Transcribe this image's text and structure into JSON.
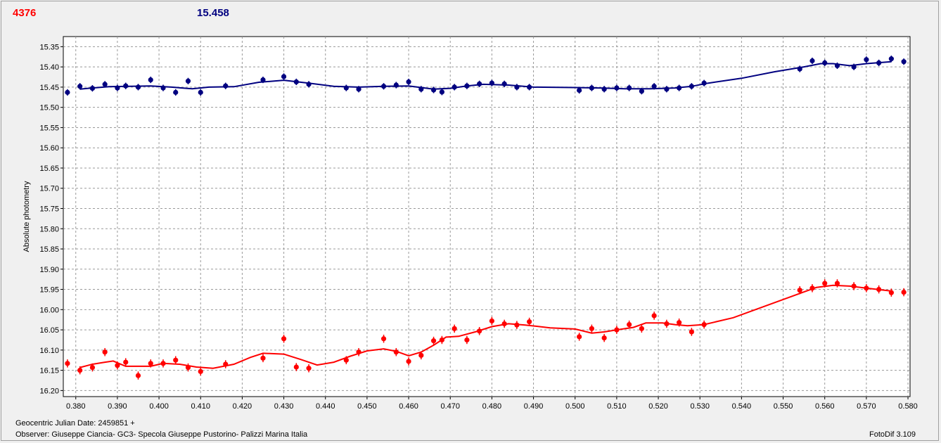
{
  "header": {
    "left_value": "4376",
    "right_value": "15.458",
    "left_color": "#ff0000",
    "right_color": "#000080"
  },
  "footer": {
    "date_line": "Geocentric Julian Date: 2459851 +",
    "observer_line": "Observer: Giuseppe Ciancia- GC3- Specola Giuseppe Pustorino- Palizzi Marina Italia",
    "software": "FotoDif 3.109"
  },
  "chart_data": {
    "type": "scatter",
    "ylabel": "Absolute photometry",
    "xlim": [
      0.377,
      0.5805
    ],
    "ylim": [
      15.325,
      16.215
    ],
    "y_inverted": true,
    "grid": true,
    "x_ticks": [
      "0.380",
      "0.390",
      "0.400",
      "0.410",
      "0.420",
      "0.430",
      "0.440",
      "0.450",
      "0.460",
      "0.470",
      "0.480",
      "0.490",
      "0.500",
      "0.510",
      "0.520",
      "0.530",
      "0.540",
      "0.550",
      "0.560",
      "0.570",
      "0.580"
    ],
    "y_ticks": [
      "15.35",
      "15.40",
      "15.45",
      "15.50",
      "15.55",
      "15.60",
      "15.65",
      "15.70",
      "15.75",
      "15.80",
      "15.85",
      "15.90",
      "15.95",
      "16.00",
      "16.05",
      "16.10",
      "16.15",
      "16.20"
    ],
    "series": [
      {
        "color": "#000080",
        "points": [
          [
            0.378,
            15.463
          ],
          [
            0.381,
            15.448
          ],
          [
            0.384,
            15.453
          ],
          [
            0.387,
            15.443
          ],
          [
            0.39,
            15.452
          ],
          [
            0.392,
            15.447
          ],
          [
            0.395,
            15.45
          ],
          [
            0.398,
            15.432
          ],
          [
            0.401,
            15.452
          ],
          [
            0.404,
            15.463
          ],
          [
            0.407,
            15.435
          ],
          [
            0.41,
            15.463
          ],
          [
            0.416,
            15.447
          ],
          [
            0.425,
            15.432
          ],
          [
            0.43,
            15.424
          ],
          [
            0.433,
            15.437
          ],
          [
            0.436,
            15.443
          ],
          [
            0.445,
            15.452
          ],
          [
            0.448,
            15.455
          ],
          [
            0.454,
            15.448
          ],
          [
            0.457,
            15.445
          ],
          [
            0.46,
            15.437
          ],
          [
            0.463,
            15.455
          ],
          [
            0.466,
            15.457
          ],
          [
            0.468,
            15.462
          ],
          [
            0.471,
            15.45
          ],
          [
            0.474,
            15.447
          ],
          [
            0.477,
            15.442
          ],
          [
            0.48,
            15.44
          ],
          [
            0.483,
            15.442
          ],
          [
            0.486,
            15.45
          ],
          [
            0.489,
            15.45
          ],
          [
            0.501,
            15.458
          ],
          [
            0.504,
            15.452
          ],
          [
            0.507,
            15.455
          ],
          [
            0.51,
            15.452
          ],
          [
            0.513,
            15.452
          ],
          [
            0.516,
            15.46
          ],
          [
            0.519,
            15.448
          ],
          [
            0.522,
            15.455
          ],
          [
            0.525,
            15.452
          ],
          [
            0.528,
            15.448
          ],
          [
            0.531,
            15.44
          ],
          [
            0.554,
            15.405
          ],
          [
            0.557,
            15.385
          ],
          [
            0.56,
            15.39
          ],
          [
            0.563,
            15.397
          ],
          [
            0.567,
            15.4
          ],
          [
            0.57,
            15.382
          ],
          [
            0.573,
            15.39
          ],
          [
            0.576,
            15.38
          ],
          [
            0.579,
            15.387
          ]
        ],
        "fit": [
          [
            0.381,
            15.455
          ],
          [
            0.384,
            15.452
          ],
          [
            0.388,
            15.449
          ],
          [
            0.393,
            15.448
          ],
          [
            0.398,
            15.447
          ],
          [
            0.403,
            15.45
          ],
          [
            0.408,
            15.454
          ],
          [
            0.412,
            15.45
          ],
          [
            0.418,
            15.449
          ],
          [
            0.424,
            15.438
          ],
          [
            0.43,
            15.433
          ],
          [
            0.436,
            15.44
          ],
          [
            0.442,
            15.448
          ],
          [
            0.448,
            15.45
          ],
          [
            0.454,
            15.448
          ],
          [
            0.46,
            15.447
          ],
          [
            0.466,
            15.455
          ],
          [
            0.47,
            15.453
          ],
          [
            0.474,
            15.447
          ],
          [
            0.478,
            15.443
          ],
          [
            0.484,
            15.445
          ],
          [
            0.49,
            15.45
          ],
          [
            0.5,
            15.451
          ],
          [
            0.506,
            15.452
          ],
          [
            0.512,
            15.454
          ],
          [
            0.518,
            15.454
          ],
          [
            0.524,
            15.452
          ],
          [
            0.528,
            15.448
          ],
          [
            0.532,
            15.44
          ],
          [
            0.54,
            15.428
          ],
          [
            0.548,
            15.412
          ],
          [
            0.555,
            15.4
          ],
          [
            0.559,
            15.392
          ],
          [
            0.562,
            15.392
          ],
          [
            0.566,
            15.397
          ],
          [
            0.57,
            15.392
          ],
          [
            0.576,
            15.387
          ]
        ],
        "errors": 0.008
      },
      {
        "color": "#ff0000",
        "points": [
          [
            0.378,
            16.133
          ],
          [
            0.381,
            16.15
          ],
          [
            0.384,
            16.143
          ],
          [
            0.387,
            16.105
          ],
          [
            0.39,
            16.138
          ],
          [
            0.392,
            16.13
          ],
          [
            0.395,
            16.163
          ],
          [
            0.398,
            16.133
          ],
          [
            0.401,
            16.133
          ],
          [
            0.404,
            16.125
          ],
          [
            0.407,
            16.143
          ],
          [
            0.41,
            16.153
          ],
          [
            0.416,
            16.135
          ],
          [
            0.425,
            16.12
          ],
          [
            0.43,
            16.072
          ],
          [
            0.433,
            16.142
          ],
          [
            0.436,
            16.145
          ],
          [
            0.445,
            16.125
          ],
          [
            0.448,
            16.105
          ],
          [
            0.454,
            16.072
          ],
          [
            0.457,
            16.105
          ],
          [
            0.46,
            16.128
          ],
          [
            0.463,
            16.113
          ],
          [
            0.466,
            16.077
          ],
          [
            0.468,
            16.075
          ],
          [
            0.471,
            16.047
          ],
          [
            0.474,
            16.075
          ],
          [
            0.477,
            16.053
          ],
          [
            0.48,
            16.028
          ],
          [
            0.483,
            16.035
          ],
          [
            0.486,
            16.038
          ],
          [
            0.489,
            16.03
          ],
          [
            0.501,
            16.067
          ],
          [
            0.504,
            16.047
          ],
          [
            0.507,
            16.07
          ],
          [
            0.51,
            16.05
          ],
          [
            0.513,
            16.037
          ],
          [
            0.516,
            16.047
          ],
          [
            0.519,
            16.015
          ],
          [
            0.522,
            16.035
          ],
          [
            0.525,
            16.032
          ],
          [
            0.528,
            16.055
          ],
          [
            0.531,
            16.037
          ],
          [
            0.554,
            15.952
          ],
          [
            0.557,
            15.947
          ],
          [
            0.56,
            15.935
          ],
          [
            0.563,
            15.935
          ],
          [
            0.567,
            15.942
          ],
          [
            0.57,
            15.947
          ],
          [
            0.573,
            15.95
          ],
          [
            0.576,
            15.958
          ],
          [
            0.579,
            15.957
          ]
        ],
        "fit": [
          [
            0.381,
            16.143
          ],
          [
            0.384,
            16.135
          ],
          [
            0.387,
            16.13
          ],
          [
            0.389,
            16.127
          ],
          [
            0.392,
            16.14
          ],
          [
            0.395,
            16.14
          ],
          [
            0.398,
            16.14
          ],
          [
            0.401,
            16.133
          ],
          [
            0.405,
            16.135
          ],
          [
            0.409,
            16.142
          ],
          [
            0.413,
            16.145
          ],
          [
            0.418,
            16.135
          ],
          [
            0.422,
            16.118
          ],
          [
            0.425,
            16.108
          ],
          [
            0.43,
            16.11
          ],
          [
            0.434,
            16.123
          ],
          [
            0.438,
            16.137
          ],
          [
            0.442,
            16.13
          ],
          [
            0.446,
            16.115
          ],
          [
            0.45,
            16.102
          ],
          [
            0.454,
            16.097
          ],
          [
            0.457,
            16.103
          ],
          [
            0.46,
            16.114
          ],
          [
            0.463,
            16.105
          ],
          [
            0.466,
            16.088
          ],
          [
            0.469,
            16.068
          ],
          [
            0.472,
            16.066
          ],
          [
            0.476,
            16.055
          ],
          [
            0.48,
            16.042
          ],
          [
            0.484,
            16.035
          ],
          [
            0.488,
            16.038
          ],
          [
            0.494,
            16.045
          ],
          [
            0.5,
            16.048
          ],
          [
            0.504,
            16.058
          ],
          [
            0.507,
            16.055
          ],
          [
            0.51,
            16.05
          ],
          [
            0.514,
            16.044
          ],
          [
            0.517,
            16.033
          ],
          [
            0.521,
            16.033
          ],
          [
            0.524,
            16.037
          ],
          [
            0.527,
            16.04
          ],
          [
            0.531,
            16.037
          ],
          [
            0.538,
            16.02
          ],
          [
            0.546,
            15.99
          ],
          [
            0.554,
            15.96
          ],
          [
            0.558,
            15.945
          ],
          [
            0.562,
            15.94
          ],
          [
            0.566,
            15.942
          ],
          [
            0.57,
            15.947
          ],
          [
            0.576,
            15.954
          ]
        ],
        "errors": 0.01
      }
    ]
  }
}
